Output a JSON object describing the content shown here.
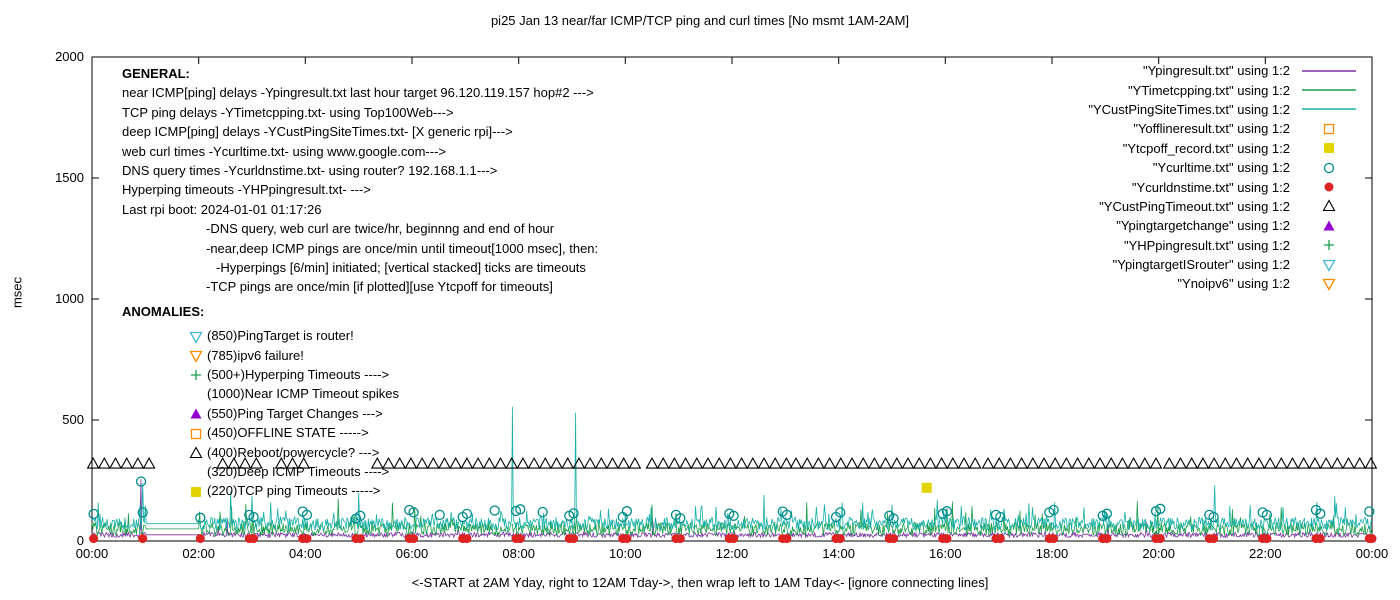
{
  "chart_data": {
    "type": "line",
    "title": "pi25 Jan 13  near/far ICMP/TCP ping and curl times [No msmt 1AM-2AM]",
    "ylabel": "msec",
    "xlabel": "<-START at 2AM Yday, right to 12AM Tday->, then wrap left to 1AM Tday<- [ignore connecting lines]",
    "ylim": [
      0,
      2000
    ],
    "xlim_hours": [
      0,
      24
    ],
    "yticks": [
      0,
      500,
      1000,
      1500,
      2000
    ],
    "xticks": [
      {
        "h": 0,
        "label": "00:00"
      },
      {
        "h": 2,
        "label": "02:00"
      },
      {
        "h": 4,
        "label": "04:00"
      },
      {
        "h": 6,
        "label": "06:00"
      },
      {
        "h": 8,
        "label": "08:00"
      },
      {
        "h": 10,
        "label": "10:00"
      },
      {
        "h": 12,
        "label": "12:00"
      },
      {
        "h": 14,
        "label": "14:00"
      },
      {
        "h": 16,
        "label": "16:00"
      },
      {
        "h": 18,
        "label": "18:00"
      },
      {
        "h": 20,
        "label": "20:00"
      },
      {
        "h": 22,
        "label": "22:00"
      },
      {
        "h": 24,
        "label": "00:00"
      }
    ],
    "grid": false,
    "legend_position": "top-right",
    "no_msmt_hours": [
      1,
      2
    ],
    "legend": [
      {
        "label": "\"Ypingresult.txt\" using 1:2",
        "marker": "line",
        "color": "#7a30a0"
      },
      {
        "label": "\"YTimetcpping.txt\" using 1:2",
        "marker": "line",
        "color": "#1b9e4b"
      },
      {
        "label": "\"YCustPingSiteTimes.txt\" using 1:2",
        "marker": "line",
        "color": "#17b0a8"
      },
      {
        "label": "\"Yofflineresult.txt\" using 1:2",
        "marker": "square-open",
        "color": "#ff8c00"
      },
      {
        "label": "\"Ytcpoff_record.txt\" using 1:2",
        "marker": "square-filled",
        "color": "#e3d400"
      },
      {
        "label": "\"Ycurltime.txt\" using 1:2",
        "marker": "circle-open",
        "color": "#008b8b"
      },
      {
        "label": "\"Ycurldnstime.txt\" using 1:2",
        "marker": "circle-filled",
        "color": "#dd2222"
      },
      {
        "label": "\"YCustPingTimeout.txt\" using 1:2",
        "marker": "triangle-up-open",
        "color": "#000000"
      },
      {
        "label": "\"Ypingtargetchange\" using 1:2",
        "marker": "triangle-up-filled",
        "color": "#9400d3"
      },
      {
        "label": "\"YHPpingresult.txt\" using 1:2",
        "marker": "plus",
        "color": "#1b9e4b"
      },
      {
        "label": "\"YpingtargetISrouter\" using 1:2",
        "marker": "triangle-down-open",
        "color": "#45b8d8"
      },
      {
        "label": "\"Ynoipv6\" using 1:2",
        "marker": "triangle-down-open",
        "color": "#ff8c00"
      }
    ],
    "series": [
      {
        "name": "Ypingresult.txt",
        "color": "#7a30a0",
        "baseline_msec": [
          15,
          36
        ],
        "spike_prob": 0.006,
        "spike_add_msec": 60,
        "spikes_msec": [
          [
            0.92,
            255
          ]
        ]
      },
      {
        "name": "YTimetcpping.txt",
        "color": "#1b9e4b",
        "baseline_msec": [
          22,
          78
        ],
        "spike_prob": 0.02,
        "spike_add_msec": 90,
        "spikes_msec": [
          [
            4.62,
            175
          ],
          [
            6.05,
            140
          ],
          [
            10.5,
            150
          ],
          [
            13.4,
            160
          ],
          [
            16.5,
            145
          ],
          [
            19.6,
            165
          ],
          [
            22.3,
            140
          ]
        ]
      },
      {
        "name": "YCustPingSiteTimes.txt",
        "color": "#17b0a8",
        "baseline_msec": [
          45,
          98
        ],
        "spike_prob": 0.05,
        "spike_add_msec": 75,
        "spikes_msec": [
          [
            0.95,
            240
          ],
          [
            2.6,
            205
          ],
          [
            3.0,
            185
          ],
          [
            5.0,
            200
          ],
          [
            7.88,
            555
          ],
          [
            9.07,
            530
          ],
          [
            12.6,
            190
          ],
          [
            15.0,
            150
          ],
          [
            18.05,
            160
          ],
          [
            21.05,
            230
          ],
          [
            23.3,
            185
          ]
        ]
      }
    ],
    "marker_series": [
      {
        "name": "YCustPingTimeout.txt",
        "marker": "triangle-up-open",
        "color": "#000000",
        "y_msec": 320,
        "step_hours": 0.21,
        "ranges_hours": [
          [
            0.02,
            1.08
          ],
          [
            2.45,
            3.2
          ],
          [
            3.55,
            4.15
          ],
          [
            5.35,
            10.35
          ],
          [
            10.5,
            13.05
          ],
          [
            13.2,
            16.65
          ],
          [
            16.8,
            20.05
          ],
          [
            20.2,
            23.98
          ]
        ]
      },
      {
        "name": "Ycurltime.txt",
        "marker": "circle-open",
        "color": "#008b8b",
        "points": [
          [
            0.03,
            112
          ],
          [
            0.92,
            246
          ],
          [
            0.95,
            118
          ],
          [
            2.03,
            96
          ],
          [
            2.95,
            108
          ],
          [
            3.03,
            99
          ],
          [
            3.95,
            122
          ],
          [
            4.03,
            108
          ],
          [
            4.95,
            93
          ],
          [
            5.03,
            104
          ],
          [
            5.95,
            128
          ],
          [
            6.03,
            118
          ],
          [
            6.52,
            108
          ],
          [
            6.95,
            99
          ],
          [
            7.03,
            112
          ],
          [
            7.55,
            126
          ],
          [
            7.95,
            124
          ],
          [
            8.03,
            131
          ],
          [
            8.45,
            120
          ],
          [
            8.95,
            104
          ],
          [
            9.03,
            114
          ],
          [
            9.95,
            99
          ],
          [
            10.03,
            123
          ],
          [
            10.95,
            108
          ],
          [
            11.03,
            94
          ],
          [
            11.95,
            113
          ],
          [
            12.03,
            104
          ],
          [
            12.95,
            122
          ],
          [
            13.03,
            108
          ],
          [
            13.95,
            99
          ],
          [
            14.03,
            118
          ],
          [
            14.95,
            104
          ],
          [
            15.03,
            93
          ],
          [
            15.95,
            113
          ],
          [
            16.03,
            123
          ],
          [
            16.95,
            108
          ],
          [
            17.03,
            99
          ],
          [
            17.95,
            118
          ],
          [
            18.03,
            128
          ],
          [
            18.95,
            104
          ],
          [
            19.03,
            113
          ],
          [
            19.95,
            123
          ],
          [
            20.03,
            133
          ],
          [
            20.95,
            108
          ],
          [
            21.03,
            99
          ],
          [
            21.95,
            118
          ],
          [
            22.03,
            108
          ],
          [
            22.95,
            128
          ],
          [
            23.03,
            113
          ],
          [
            23.95,
            122
          ]
        ]
      },
      {
        "name": "Ycurldnstime.txt",
        "marker": "circle-filled",
        "color": "#dd2222",
        "points": [
          [
            0.03,
            10
          ],
          [
            0.95,
            10
          ],
          [
            2.03,
            10
          ],
          [
            2.95,
            10
          ],
          [
            3.03,
            10
          ],
          [
            3.95,
            10
          ],
          [
            4.03,
            10
          ],
          [
            4.95,
            10
          ],
          [
            5.03,
            10
          ],
          [
            5.95,
            10
          ],
          [
            6.03,
            10
          ],
          [
            6.95,
            10
          ],
          [
            7.03,
            10
          ],
          [
            7.95,
            10
          ],
          [
            8.03,
            10
          ],
          [
            8.95,
            10
          ],
          [
            9.03,
            10
          ],
          [
            9.95,
            10
          ],
          [
            10.03,
            10
          ],
          [
            10.95,
            10
          ],
          [
            11.03,
            10
          ],
          [
            11.95,
            10
          ],
          [
            12.03,
            10
          ],
          [
            12.95,
            10
          ],
          [
            13.03,
            10
          ],
          [
            13.95,
            10
          ],
          [
            14.03,
            10
          ],
          [
            14.95,
            10
          ],
          [
            15.03,
            10
          ],
          [
            15.95,
            10
          ],
          [
            16.03,
            10
          ],
          [
            16.95,
            10
          ],
          [
            17.03,
            10
          ],
          [
            17.95,
            10
          ],
          [
            18.03,
            10
          ],
          [
            18.95,
            10
          ],
          [
            19.03,
            10
          ],
          [
            19.95,
            10
          ],
          [
            20.03,
            10
          ],
          [
            20.95,
            10
          ],
          [
            21.03,
            10
          ],
          [
            21.95,
            10
          ],
          [
            22.03,
            10
          ],
          [
            22.95,
            10
          ],
          [
            23.03,
            10
          ],
          [
            23.95,
            10
          ],
          [
            24.0,
            10
          ]
        ]
      },
      {
        "name": "Ytcpoff_record.txt",
        "marker": "square-filled",
        "color": "#e3d400",
        "points": [
          [
            15.65,
            220
          ]
        ]
      },
      {
        "name": "Yofflineresult.txt",
        "marker": "square-open",
        "color": "#ff8c00",
        "points": []
      },
      {
        "name": "Ypingtargetchange",
        "marker": "triangle-up-filled",
        "color": "#9400d3",
        "points": []
      },
      {
        "name": "YHPpingresult.txt",
        "marker": "plus",
        "color": "#1b9e4b",
        "points": []
      },
      {
        "name": "YpingtargetISrouter",
        "marker": "triangle-down-open",
        "color": "#45b8d8",
        "points": []
      },
      {
        "name": "Ynoipv6",
        "marker": "triangle-down-open",
        "color": "#ff8c00",
        "points": []
      }
    ]
  },
  "annotations": {
    "general": {
      "heading": "GENERAL:",
      "lines": [
        {
          "indent": 0,
          "text": "near ICMP[ping] delays -Ypingresult.txt last hour target 96.120.119.157 hop#2 --->"
        },
        {
          "indent": 0,
          "text": "TCP ping delays -YTimetcpping.txt- using Top100Web--->"
        },
        {
          "indent": 0,
          "text": "deep ICMP[ping] delays -YCustPingSiteTimes.txt- [X generic rpi]--->"
        },
        {
          "indent": 0,
          "text": "web curl times -Ycurltime.txt- using www.google.com--->"
        },
        {
          "indent": 0,
          "text": "DNS query times -Ycurldnstime.txt- using router? 192.168.1.1--->"
        },
        {
          "indent": 0,
          "text": "Hyperping timeouts -YHPpingresult.txt- --->"
        },
        {
          "indent": 0,
          "text": "Last rpi boot: 2024-01-01 01:17:26"
        },
        {
          "indent": 1,
          "text": "-DNS query, web curl are twice/hr, beginnng and end of hour"
        },
        {
          "indent": 1,
          "text": "-near,deep ICMP pings are once/min until timeout[1000 msec], then:"
        },
        {
          "indent": 2,
          "text": "-Hyperpings [6/min] initiated; [vertical stacked] ticks are timeouts"
        },
        {
          "indent": 1,
          "text": "-TCP pings are once/min [if plotted][use Ytcpoff for timeouts]"
        }
      ]
    },
    "anomalies": {
      "heading": "ANOMALIES:",
      "items": [
        {
          "marker": "triangle-down-open",
          "color": "#45b8d8",
          "text": "(850)PingTarget is router!"
        },
        {
          "marker": "triangle-down-open",
          "color": "#ff8c00",
          "text": "(785)ipv6 failure!"
        },
        {
          "marker": "plus",
          "color": "#1b9e4b",
          "text": "(500+)Hyperping Timeouts ---->"
        },
        {
          "marker": null,
          "color": null,
          "text": "(1000)Near ICMP Timeout spikes"
        },
        {
          "marker": "triangle-up-filled",
          "color": "#9400d3",
          "text": "(550)Ping Target Changes --->"
        },
        {
          "marker": "square-open",
          "color": "#ff8c00",
          "text": "(450)OFFLINE STATE ----->"
        },
        {
          "marker": "triangle-up-open",
          "color": "#000000",
          "text": "(400)Reboot/powercycle? --->"
        },
        {
          "marker": null,
          "color": null,
          "text": "(320)Deep ICMP Timeouts ---->"
        },
        {
          "marker": "square-filled",
          "color": "#e3d400",
          "text": "(220)TCP ping Timeouts ----->"
        }
      ]
    }
  }
}
